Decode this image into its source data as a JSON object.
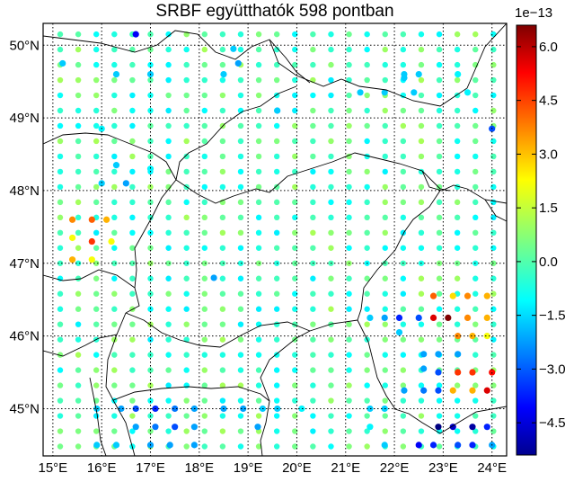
{
  "chart_data": {
    "type": "map-scatter",
    "title": "SRBF együtthatók 598 pontban",
    "x_ticks": [
      {
        "value": 15,
        "label": "15°E"
      },
      {
        "value": 16,
        "label": "16°E"
      },
      {
        "value": 17,
        "label": "17°E"
      },
      {
        "value": 18,
        "label": "18°E"
      },
      {
        "value": 19,
        "label": "19°E"
      },
      {
        "value": 20,
        "label": "20°E"
      },
      {
        "value": 21,
        "label": "21°E"
      },
      {
        "value": 22,
        "label": "22°E"
      },
      {
        "value": 23,
        "label": "23°E"
      },
      {
        "value": 24,
        "label": "24°E"
      }
    ],
    "y_ticks": [
      {
        "value": 45,
        "label": "45°N"
      },
      {
        "value": 46,
        "label": "46°N"
      },
      {
        "value": 47,
        "label": "47°N"
      },
      {
        "value": 48,
        "label": "48°N"
      },
      {
        "value": 49,
        "label": "49°N"
      },
      {
        "value": 50,
        "label": "50°N"
      }
    ],
    "xlim": [
      14.8,
      24.3
    ],
    "ylim": [
      44.35,
      50.3
    ],
    "grid": "dotted",
    "colorbar": {
      "exponent_label": "1e−13",
      "vmin": -5.4,
      "vmax": 6.6,
      "ticks": [
        {
          "value": 6.0,
          "label": "6.0"
        },
        {
          "value": 4.5,
          "label": "4.5"
        },
        {
          "value": 3.0,
          "label": "3.0"
        },
        {
          "value": 1.5,
          "label": "1.5"
        },
        {
          "value": 0.0,
          "label": "0.0"
        },
        {
          "value": -1.5,
          "label": "−1.5"
        },
        {
          "value": -3.0,
          "label": "−3.0"
        },
        {
          "value": -4.5,
          "label": "−4.5"
        }
      ],
      "colormap": "jet"
    },
    "points": [
      [
        16.7,
        50.15,
        -4.0
      ],
      [
        15.2,
        49.75,
        -1.5
      ],
      [
        16.3,
        49.6,
        -1.5
      ],
      [
        17.0,
        49.6,
        -1.5
      ],
      [
        18.7,
        49.95,
        -1.5
      ],
      [
        18.8,
        49.75,
        -2.0
      ],
      [
        18.5,
        49.6,
        -1.5
      ],
      [
        22.2,
        49.6,
        -1.5
      ],
      [
        22.5,
        49.6,
        -1.5
      ],
      [
        23.3,
        49.6,
        -1.0
      ],
      [
        22.2,
        49.55,
        -1.5
      ],
      [
        21.8,
        49.35,
        -1.5
      ],
      [
        21.3,
        49.35,
        -1.5
      ],
      [
        22.4,
        49.35,
        -1.5
      ],
      [
        23.5,
        49.35,
        -1.0
      ],
      [
        19.6,
        49.1,
        -1.5
      ],
      [
        16.0,
        48.85,
        -1.0
      ],
      [
        24.0,
        48.85,
        -3.0
      ],
      [
        16.3,
        48.35,
        -1.5
      ],
      [
        17.0,
        48.3,
        -1.0
      ],
      [
        16.5,
        48.1,
        -2.0
      ],
      [
        16.0,
        48.1,
        -1.5
      ],
      [
        15.4,
        47.6,
        3.5
      ],
      [
        15.8,
        47.6,
        4.0
      ],
      [
        16.1,
        47.6,
        3.0
      ],
      [
        15.4,
        47.35,
        2.0
      ],
      [
        15.8,
        47.3,
        4.5
      ],
      [
        16.2,
        47.3,
        2.0
      ],
      [
        15.4,
        47.05,
        3.0
      ],
      [
        15.8,
        47.05,
        2.0
      ],
      [
        18.3,
        46.8,
        -2.0
      ],
      [
        22.8,
        46.55,
        4.0
      ],
      [
        23.2,
        46.55,
        2.5
      ],
      [
        23.5,
        46.55,
        3.5
      ],
      [
        23.9,
        46.55,
        3.0
      ],
      [
        22.1,
        46.25,
        -3.5
      ],
      [
        22.5,
        46.25,
        -3.0
      ],
      [
        22.8,
        46.25,
        5.5
      ],
      [
        23.1,
        46.25,
        6.6
      ],
      [
        23.5,
        46.25,
        3.5
      ],
      [
        21.5,
        46.25,
        -1.5
      ],
      [
        21.8,
        46.25,
        -2.0
      ],
      [
        23.9,
        46.25,
        3.0
      ],
      [
        22.1,
        46.05,
        -1.5
      ],
      [
        23.3,
        46.0,
        3.5
      ],
      [
        23.6,
        46.0,
        3.0
      ],
      [
        23.9,
        46.0,
        2.0
      ],
      [
        22.6,
        45.75,
        -2.0
      ],
      [
        22.9,
        45.75,
        -2.0
      ],
      [
        23.3,
        45.75,
        -2.0
      ],
      [
        22.6,
        45.55,
        -2.0
      ],
      [
        22.9,
        45.5,
        -3.0
      ],
      [
        23.3,
        45.5,
        4.5
      ],
      [
        23.6,
        45.5,
        4.5
      ],
      [
        24.0,
        45.5,
        5.0
      ],
      [
        22.9,
        45.25,
        -3.0
      ],
      [
        23.2,
        45.25,
        3.0
      ],
      [
        23.6,
        45.25,
        3.0
      ],
      [
        23.9,
        45.25,
        5.5
      ],
      [
        22.6,
        45.25,
        -2.5
      ],
      [
        22.2,
        45.25,
        -2.0
      ],
      [
        21.5,
        45.0,
        -1.5
      ],
      [
        21.8,
        45.0,
        -1.5
      ],
      [
        15.9,
        45.0,
        -1.5
      ],
      [
        16.4,
        45.0,
        -2.0
      ],
      [
        16.7,
        45.0,
        -3.0
      ],
      [
        17.1,
        45.0,
        -3.5
      ],
      [
        17.5,
        45.0,
        -2.5
      ],
      [
        17.9,
        45.0,
        -2.0
      ],
      [
        18.5,
        45.0,
        -2.0
      ],
      [
        18.9,
        45.0,
        -2.0
      ],
      [
        19.3,
        45.0,
        -1.5
      ],
      [
        19.6,
        45.0,
        -1.5
      ],
      [
        20.1,
        45.0,
        -1.0
      ],
      [
        22.9,
        44.75,
        -5.4
      ],
      [
        23.2,
        44.75,
        -4.5
      ],
      [
        23.6,
        44.75,
        -5.0
      ],
      [
        23.9,
        44.75,
        -3.5
      ],
      [
        16.7,
        44.75,
        -2.0
      ],
      [
        17.1,
        44.75,
        -2.5
      ],
      [
        17.5,
        44.75,
        -3.0
      ],
      [
        17.9,
        44.75,
        -2.0
      ],
      [
        15.9,
        44.5,
        -1.5
      ],
      [
        16.3,
        44.5,
        -1.5
      ],
      [
        17.0,
        44.5,
        -2.0
      ],
      [
        17.4,
        44.5,
        -2.0
      ],
      [
        17.9,
        44.5,
        -2.0
      ],
      [
        22.5,
        44.5,
        -4.0
      ],
      [
        22.8,
        44.5,
        -3.5
      ],
      [
        23.3,
        44.5,
        -3.0
      ],
      [
        23.6,
        44.5,
        -3.5
      ],
      [
        24.0,
        44.5,
        -2.0
      ],
      [
        21.8,
        44.5,
        -1.5
      ],
      [
        19.2,
        44.75,
        -2.0
      ],
      [
        21.5,
        44.75,
        -1.0
      ]
    ]
  }
}
